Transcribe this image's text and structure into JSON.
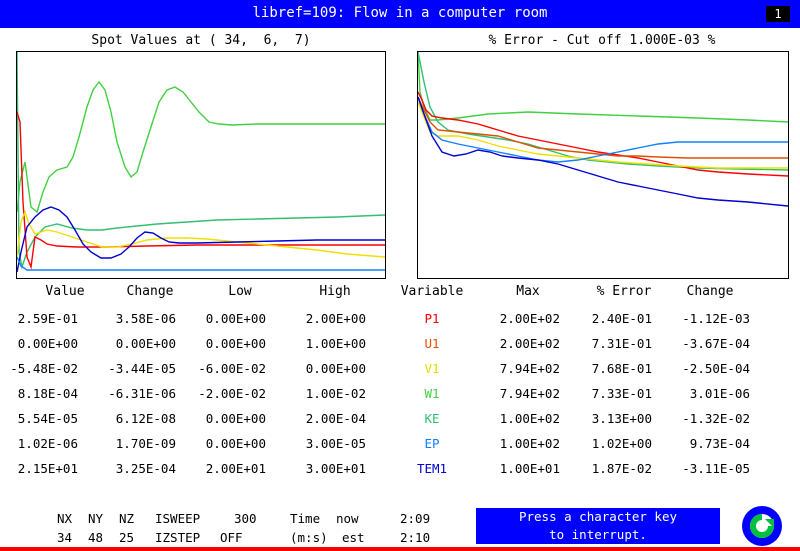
{
  "window": {
    "title": "libref=109: Flow in a computer room",
    "page_number": "1"
  },
  "left_plot": {
    "title": "Spot Values at ( 34,  6,  7)"
  },
  "right_plot": {
    "title": "% Error - Cut off 1.000E-03 %"
  },
  "spot_table": {
    "headers": [
      "Value",
      "Change",
      "Low",
      "High"
    ],
    "rows": [
      [
        "2.59E-01",
        "3.58E-06",
        "0.00E+00",
        "2.00E+00"
      ],
      [
        "0.00E+00",
        "0.00E+00",
        "0.00E+00",
        "1.00E+00"
      ],
      [
        "-5.48E-02",
        "-3.44E-05",
        "-6.00E-02",
        "0.00E+00"
      ],
      [
        "8.18E-04",
        "-6.31E-06",
        "-2.00E-02",
        "1.00E-02"
      ],
      [
        "5.54E-05",
        "6.12E-08",
        "0.00E+00",
        "2.00E-04"
      ],
      [
        "1.02E-06",
        "1.70E-09",
        "0.00E+00",
        "3.00E-05"
      ],
      [
        "2.15E+01",
        "3.25E-04",
        "2.00E+01",
        "3.00E+01"
      ]
    ]
  },
  "error_table": {
    "headers": [
      "Variable",
      "Max",
      "% Error",
      "Change"
    ],
    "rows": [
      {
        "var": "P1",
        "color": "#ff0000",
        "max": "2.00E+02",
        "err": "2.40E-01",
        "chg": "-1.12E-03"
      },
      {
        "var": "U1",
        "color": "#e05000",
        "max": "2.00E+02",
        "err": "7.31E-01",
        "chg": "-3.67E-04"
      },
      {
        "var": "V1",
        "color": "#f0f000",
        "max": "7.94E+02",
        "err": "7.68E-01",
        "chg": "-2.50E-04"
      },
      {
        "var": "W1",
        "color": "#40d040",
        "max": "7.94E+02",
        "err": "7.33E-01",
        "chg": "3.01E-06"
      },
      {
        "var": "KE",
        "color": "#30c070",
        "max": "1.00E+02",
        "err": "3.13E+00",
        "chg": "-1.32E-02"
      },
      {
        "var": "EP",
        "color": "#1080ff",
        "max": "1.00E+02",
        "err": "1.02E+00",
        "chg": "9.73E-04"
      },
      {
        "var": "TEM1",
        "color": "#0000d0",
        "max": "1.00E+01",
        "err": "1.87E-02",
        "chg": "-3.11E-05"
      }
    ]
  },
  "grid_info": {
    "nx_label": "NX",
    "ny_label": "NY",
    "nz_label": "NZ",
    "nx": "34",
    "ny": "48",
    "nz": "25",
    "isweep_label": "ISWEEP",
    "isweep": "300",
    "izstep_label": "IZSTEP",
    "izstep": "OFF",
    "time_label": "Time",
    "now_label": "now",
    "now": "2:09",
    "ms_label": "(m:s)",
    "est_label": "est",
    "est": "2:10"
  },
  "interrupt_button": {
    "line1": "Press a character key",
    "line2": "to interrupt."
  },
  "logo": {
    "icon": "phoenics-logo-icon",
    "colors": [
      "#0000ff",
      "#00c040"
    ]
  }
}
